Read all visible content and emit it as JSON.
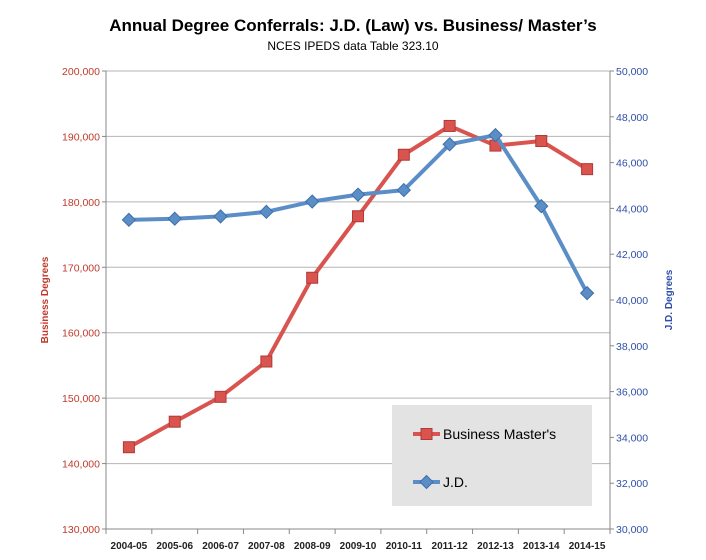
{
  "chart_data": {
    "type": "line",
    "title": "Annual Degree Conferrals: J.D. (Law) vs. Business/ Master’s",
    "subtitle": "NCES IPEDS data Table 323.10",
    "categories": [
      "2004-05",
      "2005-06",
      "2006-07",
      "2007-08",
      "2008-09",
      "2009-10",
      "2010-11",
      "2011-12",
      "2012-13",
      "2013-14",
      "2014-15"
    ],
    "y_left": {
      "label": "Business Degrees",
      "range": [
        130000,
        200000
      ],
      "ticks": [
        "130,000",
        "140,000",
        "150,000",
        "160,000",
        "170,000",
        "180,000",
        "190,000",
        "200,000"
      ],
      "color": "#c0392b"
    },
    "y_right": {
      "label": "J.D. Degrees",
      "range": [
        30000,
        50000
      ],
      "ticks": [
        "30,000",
        "32,000",
        "34,000",
        "36,000",
        "38,000",
        "40,000",
        "42,000",
        "44,000",
        "46,000",
        "48,000",
        "50,000"
      ],
      "color": "#2e4fa8"
    },
    "series": [
      {
        "name": "Business Master's",
        "axis": "left",
        "color": "#d9534f",
        "marker": "square",
        "values": [
          142500,
          146400,
          150200,
          155600,
          168400,
          177800,
          187200,
          191600,
          188600,
          189300,
          185000
        ]
      },
      {
        "name": "J.D.",
        "axis": "right",
        "color": "#5b8ec7",
        "marker": "diamond",
        "values": [
          43500,
          43550,
          43650,
          43850,
          44300,
          44600,
          44800,
          46800,
          47200,
          44100,
          40300
        ]
      }
    ],
    "grid": true,
    "legend_placement": "bottom-right"
  }
}
